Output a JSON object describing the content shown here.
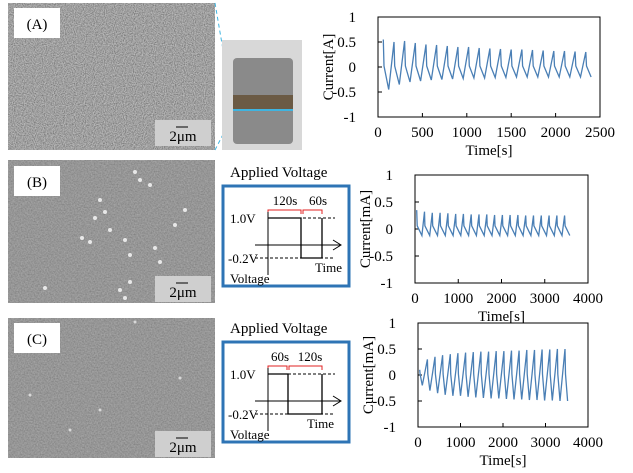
{
  "panels": [
    {
      "label": "(A)",
      "scale_bar": "2μm"
    },
    {
      "label": "(B)",
      "scale_bar": "2μm",
      "diagram": {
        "title": "Applied Voltage",
        "t1": "120s",
        "t2": "60s",
        "v_high": "1.0V",
        "v_low": "-0.2V",
        "y_label": "Voltage",
        "x_label": "Time"
      }
    },
    {
      "label": "(C)",
      "scale_bar": "2μm",
      "diagram": {
        "title": "Applied Voltage",
        "t1": "60s",
        "t2": "120s",
        "v_high": "1.0V",
        "v_low": "-0.2V",
        "y_label": "Voltage",
        "x_label": "Time"
      }
    }
  ],
  "chart_data": [
    {
      "type": "line",
      "xlabel": "Time[s]",
      "ylabel": "Current[A]",
      "xlim": [
        0,
        2500
      ],
      "xticks": [
        0,
        500,
        1000,
        1500,
        2000,
        2500
      ],
      "ylim": [
        -1,
        1
      ],
      "yticks": [
        -1,
        -0.5,
        0,
        0.5,
        1
      ],
      "series": [
        {
          "color": "#4a7fb5",
          "x": [
            60,
            68,
            120,
            180,
            188,
            240,
            300,
            308,
            360,
            420,
            428,
            480,
            540,
            548,
            600,
            660,
            668,
            720,
            780,
            788,
            840,
            900,
            908,
            960,
            1020,
            1028,
            1080,
            1140,
            1148,
            1200,
            1260,
            1268,
            1320,
            1380,
            1388,
            1440,
            1500,
            1508,
            1560,
            1620,
            1628,
            1680,
            1740,
            1748,
            1800,
            1860,
            1868,
            1920,
            1980,
            1988,
            2040,
            2100,
            2108,
            2160,
            2220,
            2228,
            2280,
            2340,
            2348,
            2400
          ],
          "values": [
            0.55,
            0.02,
            -0.45,
            0.5,
            0.02,
            -0.35,
            0.52,
            0.02,
            -0.3,
            0.48,
            0.02,
            -0.28,
            0.45,
            0.02,
            -0.26,
            0.44,
            0.02,
            -0.25,
            0.42,
            0.02,
            -0.24,
            0.4,
            0.02,
            -0.23,
            0.4,
            0.02,
            -0.22,
            0.38,
            0.02,
            -0.22,
            0.37,
            0.02,
            -0.21,
            0.36,
            0.02,
            -0.21,
            0.35,
            0.02,
            -0.2,
            0.35,
            0.02,
            -0.2,
            0.34,
            0.02,
            -0.2,
            0.33,
            0.02,
            -0.2,
            0.32,
            0.02,
            -0.2,
            0.32,
            0.02,
            -0.2,
            0.31,
            0.02,
            -0.2,
            0.3,
            0.02,
            -0.2
          ]
        }
      ]
    },
    {
      "type": "line",
      "xlabel": "Time[s]",
      "ylabel": "Current[mA]",
      "xlim": [
        0,
        4000
      ],
      "xticks": [
        0,
        1000,
        2000,
        3000,
        4000
      ],
      "ylim": [
        -1,
        1
      ],
      "yticks": [
        -1,
        -0.5,
        0,
        0.5,
        1
      ],
      "series": [
        {
          "color": "#4a7fb5",
          "x": [
            40,
            50,
            160,
            220,
            230,
            340,
            400,
            410,
            520,
            580,
            590,
            700,
            760,
            770,
            880,
            940,
            950,
            1060,
            1120,
            1130,
            1240,
            1300,
            1310,
            1420,
            1480,
            1490,
            1600,
            1660,
            1670,
            1780,
            1840,
            1850,
            1960,
            2020,
            2030,
            2140,
            2200,
            2210,
            2320,
            2380,
            2390,
            2500,
            2560,
            2570,
            2680,
            2740,
            2750,
            2860,
            2920,
            2930,
            3040,
            3100,
            3110,
            3220,
            3280,
            3290,
            3400,
            3460,
            3470,
            3580
          ],
          "values": [
            0.35,
            0.06,
            -0.12,
            0.32,
            0.06,
            -0.12,
            0.3,
            0.06,
            -0.12,
            0.3,
            0.06,
            -0.12,
            0.29,
            0.06,
            -0.12,
            0.28,
            0.06,
            -0.12,
            0.28,
            0.06,
            -0.12,
            0.27,
            0.06,
            -0.12,
            0.27,
            0.06,
            -0.12,
            0.27,
            0.06,
            -0.12,
            0.26,
            0.06,
            -0.12,
            0.26,
            0.06,
            -0.12,
            0.26,
            0.06,
            -0.12,
            0.26,
            0.06,
            -0.12,
            0.25,
            0.06,
            -0.12,
            0.25,
            0.06,
            -0.12,
            0.25,
            0.06,
            -0.12,
            0.25,
            0.06,
            -0.12,
            0.25,
            0.06,
            -0.12,
            0.25,
            0.06,
            -0.12
          ]
        }
      ]
    },
    {
      "type": "line",
      "xlabel": "Time[s]",
      "ylabel": "Current[mA]",
      "xlim": [
        0,
        4000
      ],
      "xticks": [
        0,
        1000,
        2000,
        3000,
        4000
      ],
      "ylim": [
        -1,
        1
      ],
      "yticks": [
        -1,
        -0.5,
        0,
        0.5,
        1
      ],
      "series": [
        {
          "color": "#4a7fb5",
          "x": [
            40,
            50,
            100,
            220,
            230,
            280,
            400,
            410,
            460,
            580,
            590,
            640,
            760,
            770,
            820,
            940,
            950,
            1000,
            1120,
            1130,
            1180,
            1300,
            1310,
            1360,
            1480,
            1490,
            1540,
            1660,
            1670,
            1720,
            1840,
            1850,
            1900,
            2020,
            2030,
            2080,
            2200,
            2210,
            2260,
            2380,
            2390,
            2440,
            2560,
            2570,
            2620,
            2740,
            2750,
            2800,
            2920,
            2930,
            2980,
            3100,
            3110,
            3160,
            3280,
            3290,
            3340,
            3460,
            3470,
            3520
          ],
          "values": [
            0.1,
            0.02,
            -0.2,
            0.3,
            0.02,
            -0.3,
            0.35,
            0.02,
            -0.35,
            0.38,
            0.02,
            -0.38,
            0.4,
            0.02,
            -0.4,
            0.42,
            0.02,
            -0.4,
            0.43,
            0.02,
            -0.42,
            0.44,
            0.02,
            -0.43,
            0.45,
            0.02,
            -0.44,
            0.45,
            0.02,
            -0.45,
            0.46,
            0.02,
            -0.45,
            0.46,
            0.02,
            -0.46,
            0.47,
            0.02,
            -0.47,
            0.47,
            0.02,
            -0.47,
            0.48,
            0.02,
            -0.48,
            0.48,
            0.02,
            -0.48,
            0.49,
            0.02,
            -0.49,
            0.49,
            0.02,
            -0.49,
            0.5,
            0.02,
            -0.5,
            0.5,
            0.02,
            -0.5
          ]
        }
      ]
    }
  ]
}
